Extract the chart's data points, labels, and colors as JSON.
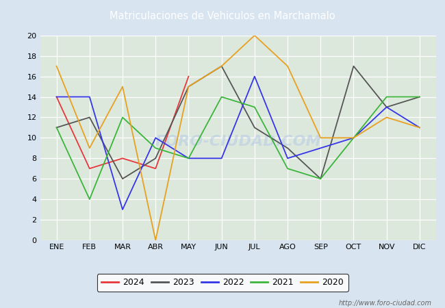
{
  "title": "Matriculaciones de Vehiculos en Marchamalo",
  "months": [
    "ENE",
    "FEB",
    "MAR",
    "ABR",
    "MAY",
    "JUN",
    "JUL",
    "AGO",
    "SEP",
    "OCT",
    "NOV",
    "DIC"
  ],
  "series": {
    "2024": [
      14,
      7,
      8,
      7,
      16,
      null,
      null,
      null,
      null,
      null,
      null,
      null
    ],
    "2023": [
      11,
      12,
      6,
      8,
      15,
      17,
      11,
      9,
      6,
      17,
      13,
      14
    ],
    "2022": [
      14,
      14,
      3,
      10,
      8,
      8,
      16,
      8,
      9,
      10,
      13,
      11
    ],
    "2021": [
      11,
      4,
      12,
      9,
      8,
      14,
      13,
      7,
      6,
      10,
      14,
      14
    ],
    "2020": [
      17,
      9,
      15,
      0,
      15,
      17,
      20,
      17,
      10,
      10,
      12,
      11
    ]
  },
  "colors": {
    "2024": "#e8373b",
    "2023": "#555555",
    "2022": "#3535e8",
    "2021": "#3ab53a",
    "2020": "#e8a020"
  },
  "ylim": [
    0,
    20
  ],
  "yticks": [
    0,
    2,
    4,
    6,
    8,
    10,
    12,
    14,
    16,
    18,
    20
  ],
  "background_color": "#d8e4f0",
  "plot_bg_color": "#dce8dc",
  "header_color": "#4472c4",
  "title_color": "white",
  "watermark": "FORO-CIUDAD.COM",
  "url": "http://www.foro-ciudad.com"
}
